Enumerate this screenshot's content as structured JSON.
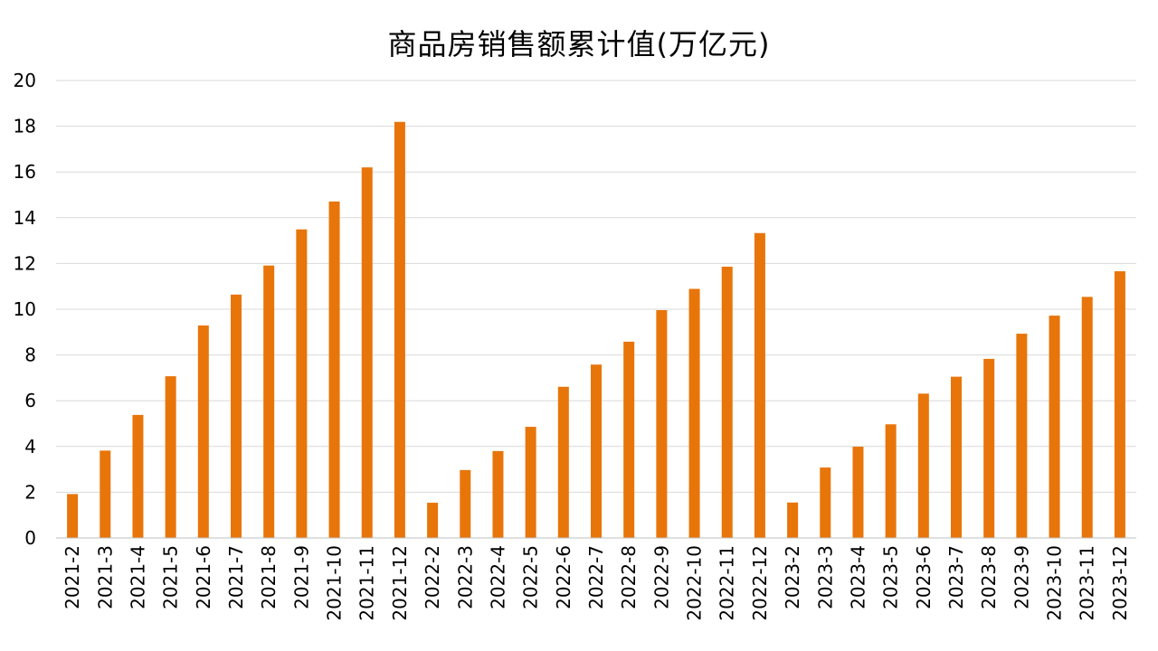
{
  "chart_data": {
    "type": "bar",
    "title": "商品房销售额累计值(万亿元)",
    "xlabel": "",
    "ylabel": "",
    "ylim": [
      0,
      20
    ],
    "yticks": [
      0,
      2,
      4,
      6,
      8,
      10,
      12,
      14,
      16,
      18,
      20
    ],
    "grid": true,
    "legend": "none",
    "bar_color": "#E8750A",
    "grid_color": "#D9D9D9",
    "categories": [
      "2021-2",
      "2021-3",
      "2021-4",
      "2021-5",
      "2021-6",
      "2021-7",
      "2021-8",
      "2021-9",
      "2021-10",
      "2021-11",
      "2021-12",
      "2022-2",
      "2022-3",
      "2022-4",
      "2022-5",
      "2022-6",
      "2022-7",
      "2022-8",
      "2022-9",
      "2022-10",
      "2022-11",
      "2022-12",
      "2023-2",
      "2023-3",
      "2023-4",
      "2023-5",
      "2023-6",
      "2023-7",
      "2023-8",
      "2023-9",
      "2023-10",
      "2023-11",
      "2023-12"
    ],
    "values": [
      1.92,
      3.82,
      5.38,
      7.07,
      9.29,
      10.64,
      11.91,
      13.49,
      14.71,
      16.2,
      18.19,
      1.54,
      2.97,
      3.8,
      4.86,
      6.61,
      7.58,
      8.58,
      9.96,
      10.89,
      11.86,
      13.33,
      1.55,
      3.08,
      3.99,
      4.97,
      6.31,
      7.05,
      7.83,
      8.93,
      9.72,
      10.54,
      11.66
    ]
  }
}
